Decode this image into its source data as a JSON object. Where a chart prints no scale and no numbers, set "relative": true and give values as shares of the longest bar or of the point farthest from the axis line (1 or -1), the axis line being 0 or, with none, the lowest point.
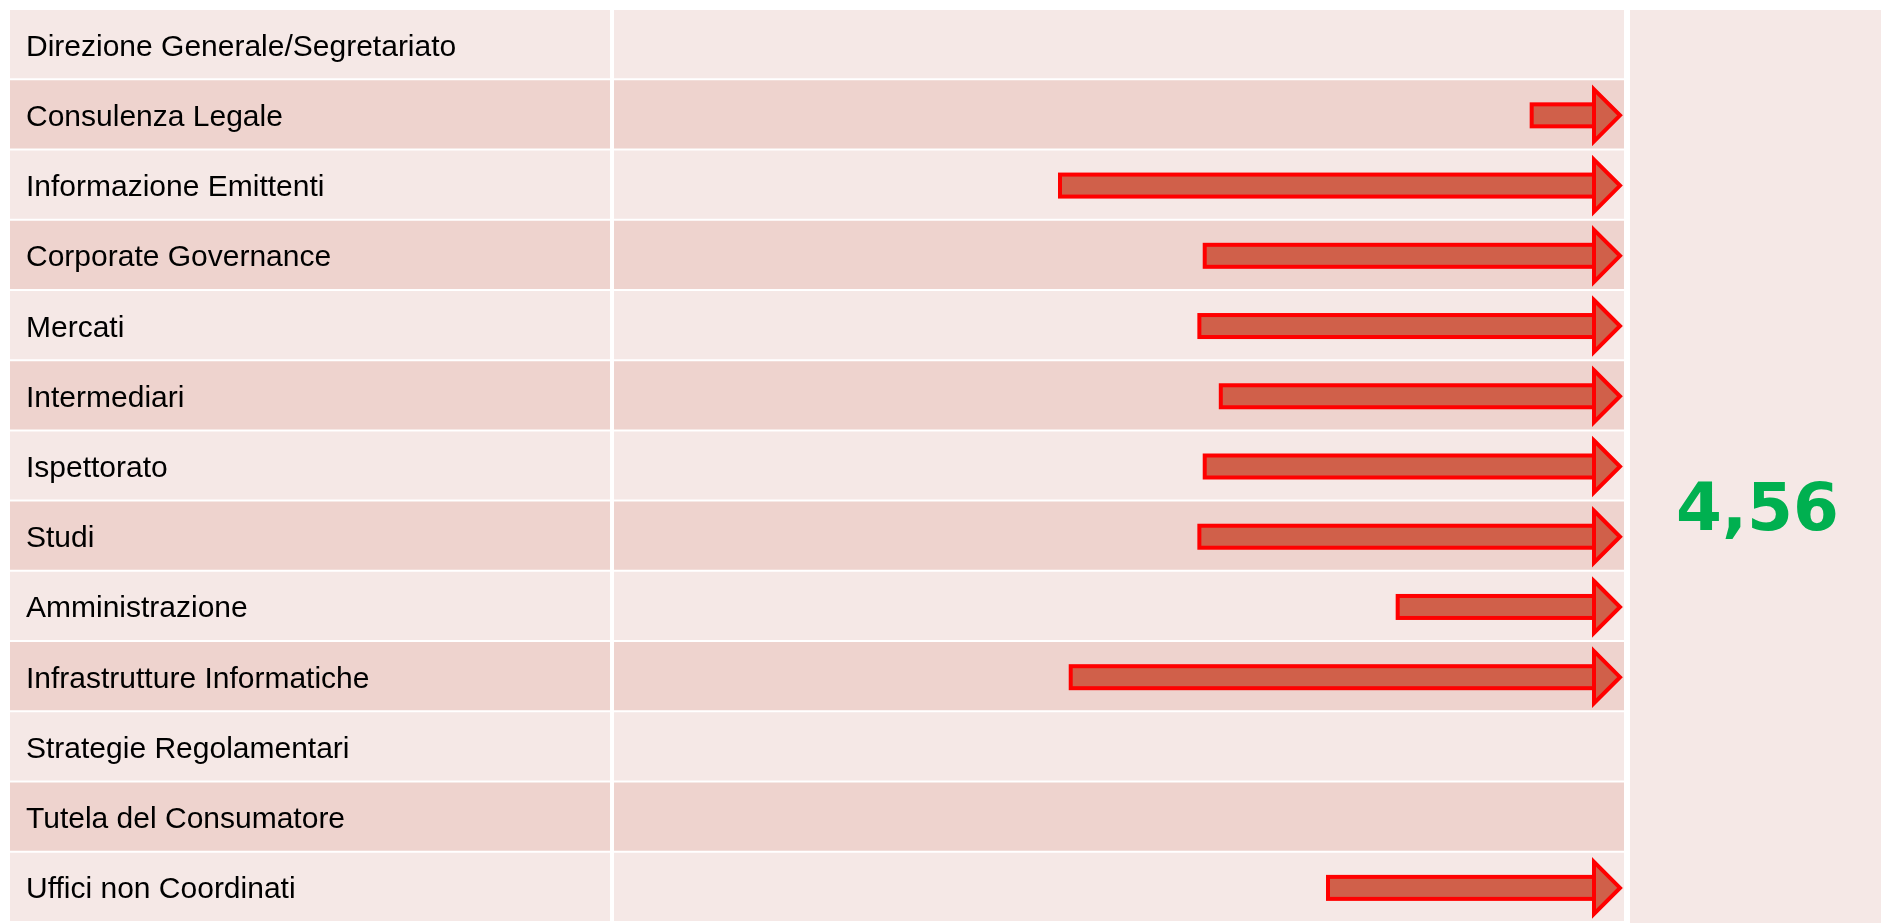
{
  "chart_data": {
    "type": "bar",
    "orientation": "horizontal",
    "relative": true,
    "categories": [
      "Direzione Generale/Segretariato",
      "Consulenza Legale",
      "Informazione Emittenti",
      "Corporate Governance",
      "Mercati",
      "Intermediari",
      "Ispettorato",
      "Studi",
      "Amministrazione",
      "Infrastrutture Informatiche",
      "Strategie Regolamentari",
      "Tutela del Consumatore",
      "Uffici non Coordinati"
    ],
    "values": [
      null,
      -0.12,
      -1,
      -0.73,
      -0.74,
      -0.7,
      -0.73,
      -0.74,
      -0.37,
      -0.98,
      null,
      null,
      -0.5
    ],
    "color": "#d0604a",
    "annotations": [
      "4,56"
    ]
  }
}
